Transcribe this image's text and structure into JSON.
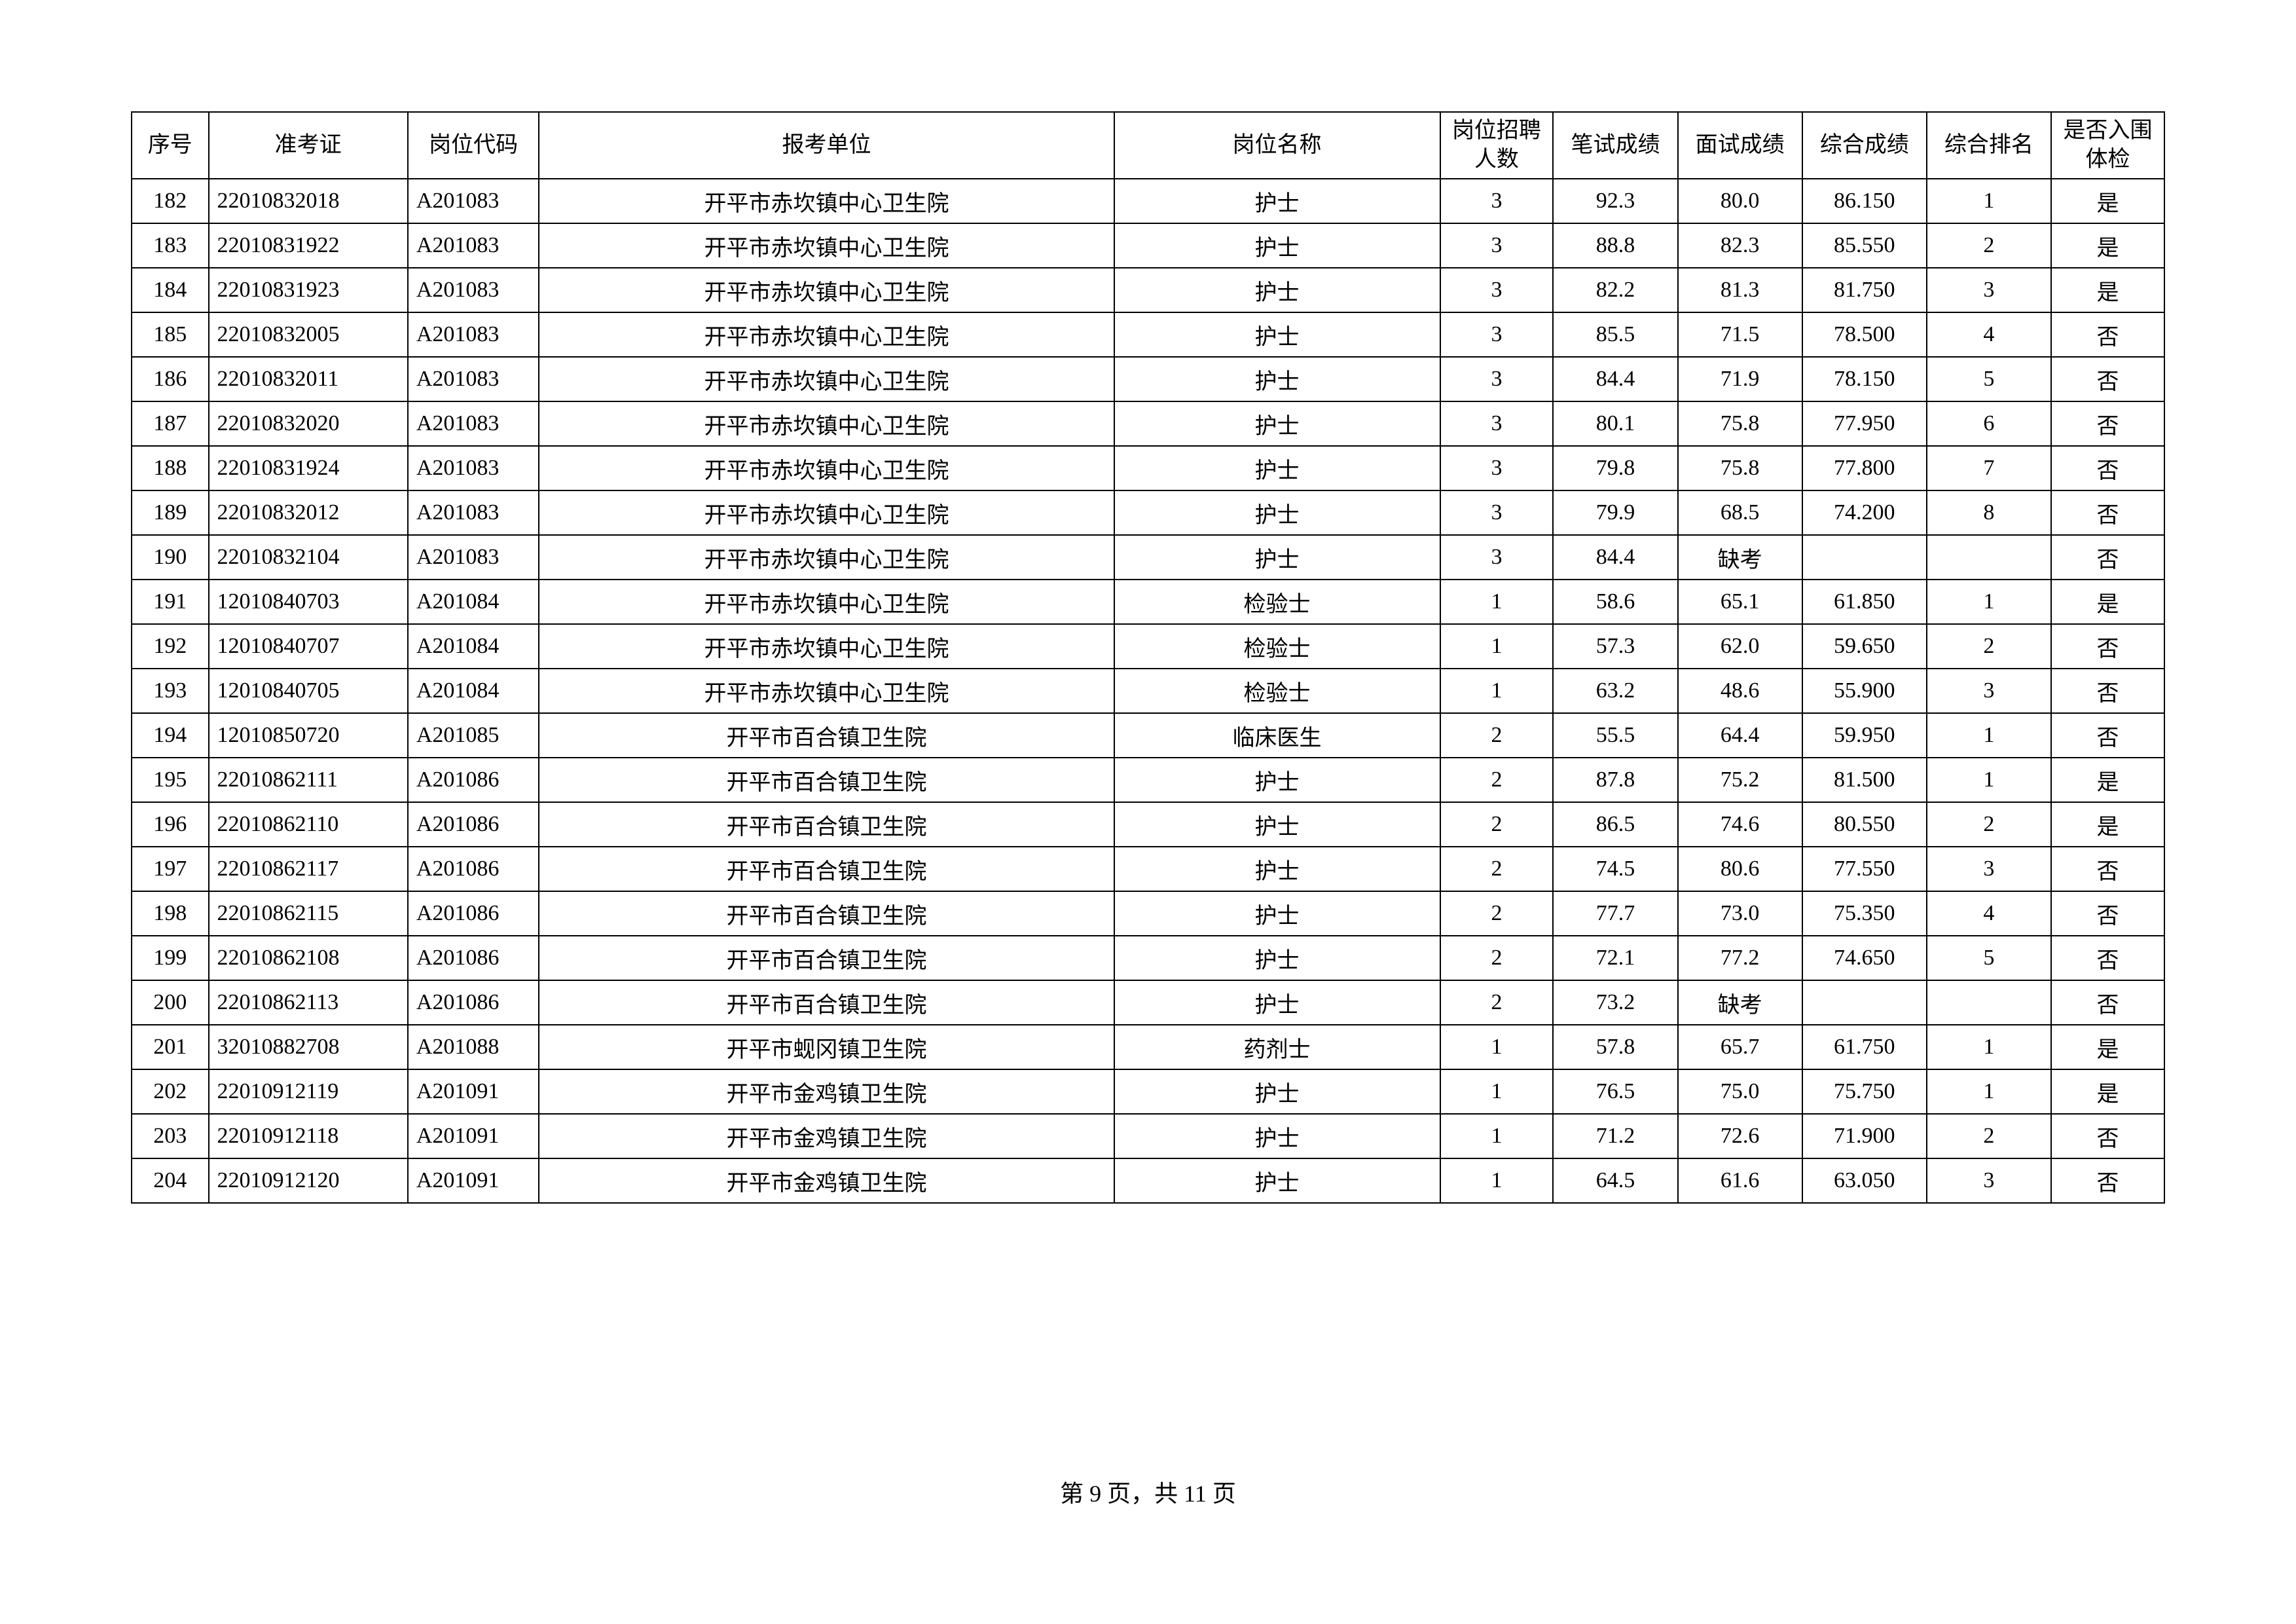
{
  "table": {
    "headers": {
      "seq": "序号",
      "exam_no": "准考证",
      "pos_code": "岗位代码",
      "unit": "报考单位",
      "pos_name": "岗位名称",
      "quota": "岗位招聘\n人数",
      "written": "笔试成绩",
      "interview": "面试成绩",
      "total": "综合成绩",
      "rank": "综合排名",
      "pass": "是否入围\n体检"
    },
    "rows": [
      {
        "seq": "182",
        "exam_no": "22010832018",
        "pos_code": "A201083",
        "unit": "开平市赤坎镇中心卫生院",
        "pos_name": "护士",
        "quota": "3",
        "written": "92.3",
        "interview": "80.0",
        "total": "86.150",
        "rank": "1",
        "pass": "是"
      },
      {
        "seq": "183",
        "exam_no": "22010831922",
        "pos_code": "A201083",
        "unit": "开平市赤坎镇中心卫生院",
        "pos_name": "护士",
        "quota": "3",
        "written": "88.8",
        "interview": "82.3",
        "total": "85.550",
        "rank": "2",
        "pass": "是"
      },
      {
        "seq": "184",
        "exam_no": "22010831923",
        "pos_code": "A201083",
        "unit": "开平市赤坎镇中心卫生院",
        "pos_name": "护士",
        "quota": "3",
        "written": "82.2",
        "interview": "81.3",
        "total": "81.750",
        "rank": "3",
        "pass": "是"
      },
      {
        "seq": "185",
        "exam_no": "22010832005",
        "pos_code": "A201083",
        "unit": "开平市赤坎镇中心卫生院",
        "pos_name": "护士",
        "quota": "3",
        "written": "85.5",
        "interview": "71.5",
        "total": "78.500",
        "rank": "4",
        "pass": "否"
      },
      {
        "seq": "186",
        "exam_no": "22010832011",
        "pos_code": "A201083",
        "unit": "开平市赤坎镇中心卫生院",
        "pos_name": "护士",
        "quota": "3",
        "written": "84.4",
        "interview": "71.9",
        "total": "78.150",
        "rank": "5",
        "pass": "否"
      },
      {
        "seq": "187",
        "exam_no": "22010832020",
        "pos_code": "A201083",
        "unit": "开平市赤坎镇中心卫生院",
        "pos_name": "护士",
        "quota": "3",
        "written": "80.1",
        "interview": "75.8",
        "total": "77.950",
        "rank": "6",
        "pass": "否"
      },
      {
        "seq": "188",
        "exam_no": "22010831924",
        "pos_code": "A201083",
        "unit": "开平市赤坎镇中心卫生院",
        "pos_name": "护士",
        "quota": "3",
        "written": "79.8",
        "interview": "75.8",
        "total": "77.800",
        "rank": "7",
        "pass": "否"
      },
      {
        "seq": "189",
        "exam_no": "22010832012",
        "pos_code": "A201083",
        "unit": "开平市赤坎镇中心卫生院",
        "pos_name": "护士",
        "quota": "3",
        "written": "79.9",
        "interview": "68.5",
        "total": "74.200",
        "rank": "8",
        "pass": "否"
      },
      {
        "seq": "190",
        "exam_no": "22010832104",
        "pos_code": "A201083",
        "unit": "开平市赤坎镇中心卫生院",
        "pos_name": "护士",
        "quota": "3",
        "written": "84.4",
        "interview": "缺考",
        "total": "",
        "rank": "",
        "pass": "否"
      },
      {
        "seq": "191",
        "exam_no": "12010840703",
        "pos_code": "A201084",
        "unit": "开平市赤坎镇中心卫生院",
        "pos_name": "检验士",
        "quota": "1",
        "written": "58.6",
        "interview": "65.1",
        "total": "61.850",
        "rank": "1",
        "pass": "是"
      },
      {
        "seq": "192",
        "exam_no": "12010840707",
        "pos_code": "A201084",
        "unit": "开平市赤坎镇中心卫生院",
        "pos_name": "检验士",
        "quota": "1",
        "written": "57.3",
        "interview": "62.0",
        "total": "59.650",
        "rank": "2",
        "pass": "否"
      },
      {
        "seq": "193",
        "exam_no": "12010840705",
        "pos_code": "A201084",
        "unit": "开平市赤坎镇中心卫生院",
        "pos_name": "检验士",
        "quota": "1",
        "written": "63.2",
        "interview": "48.6",
        "total": "55.900",
        "rank": "3",
        "pass": "否"
      },
      {
        "seq": "194",
        "exam_no": "12010850720",
        "pos_code": "A201085",
        "unit": "开平市百合镇卫生院",
        "pos_name": "临床医生",
        "quota": "2",
        "written": "55.5",
        "interview": "64.4",
        "total": "59.950",
        "rank": "1",
        "pass": "否"
      },
      {
        "seq": "195",
        "exam_no": "22010862111",
        "pos_code": "A201086",
        "unit": "开平市百合镇卫生院",
        "pos_name": "护士",
        "quota": "2",
        "written": "87.8",
        "interview": "75.2",
        "total": "81.500",
        "rank": "1",
        "pass": "是"
      },
      {
        "seq": "196",
        "exam_no": "22010862110",
        "pos_code": "A201086",
        "unit": "开平市百合镇卫生院",
        "pos_name": "护士",
        "quota": "2",
        "written": "86.5",
        "interview": "74.6",
        "total": "80.550",
        "rank": "2",
        "pass": "是"
      },
      {
        "seq": "197",
        "exam_no": "22010862117",
        "pos_code": "A201086",
        "unit": "开平市百合镇卫生院",
        "pos_name": "护士",
        "quota": "2",
        "written": "74.5",
        "interview": "80.6",
        "total": "77.550",
        "rank": "3",
        "pass": "否"
      },
      {
        "seq": "198",
        "exam_no": "22010862115",
        "pos_code": "A201086",
        "unit": "开平市百合镇卫生院",
        "pos_name": "护士",
        "quota": "2",
        "written": "77.7",
        "interview": "73.0",
        "total": "75.350",
        "rank": "4",
        "pass": "否"
      },
      {
        "seq": "199",
        "exam_no": "22010862108",
        "pos_code": "A201086",
        "unit": "开平市百合镇卫生院",
        "pos_name": "护士",
        "quota": "2",
        "written": "72.1",
        "interview": "77.2",
        "total": "74.650",
        "rank": "5",
        "pass": "否"
      },
      {
        "seq": "200",
        "exam_no": "22010862113",
        "pos_code": "A201086",
        "unit": "开平市百合镇卫生院",
        "pos_name": "护士",
        "quota": "2",
        "written": "73.2",
        "interview": "缺考",
        "total": "",
        "rank": "",
        "pass": "否"
      },
      {
        "seq": "201",
        "exam_no": "32010882708",
        "pos_code": "A201088",
        "unit": "开平市蚬冈镇卫生院",
        "pos_name": "药剂士",
        "quota": "1",
        "written": "57.8",
        "interview": "65.7",
        "total": "61.750",
        "rank": "1",
        "pass": "是"
      },
      {
        "seq": "202",
        "exam_no": "22010912119",
        "pos_code": "A201091",
        "unit": "开平市金鸡镇卫生院",
        "pos_name": "护士",
        "quota": "1",
        "written": "76.5",
        "interview": "75.0",
        "total": "75.750",
        "rank": "1",
        "pass": "是"
      },
      {
        "seq": "203",
        "exam_no": "22010912118",
        "pos_code": "A201091",
        "unit": "开平市金鸡镇卫生院",
        "pos_name": "护士",
        "quota": "1",
        "written": "71.2",
        "interview": "72.6",
        "total": "71.900",
        "rank": "2",
        "pass": "否"
      },
      {
        "seq": "204",
        "exam_no": "22010912120",
        "pos_code": "A201091",
        "unit": "开平市金鸡镇卫生院",
        "pos_name": "护士",
        "quota": "1",
        "written": "64.5",
        "interview": "61.6",
        "total": "63.050",
        "rank": "3",
        "pass": "否"
      }
    ]
  },
  "footer": {
    "text": "第 9 页，共 11 页"
  }
}
